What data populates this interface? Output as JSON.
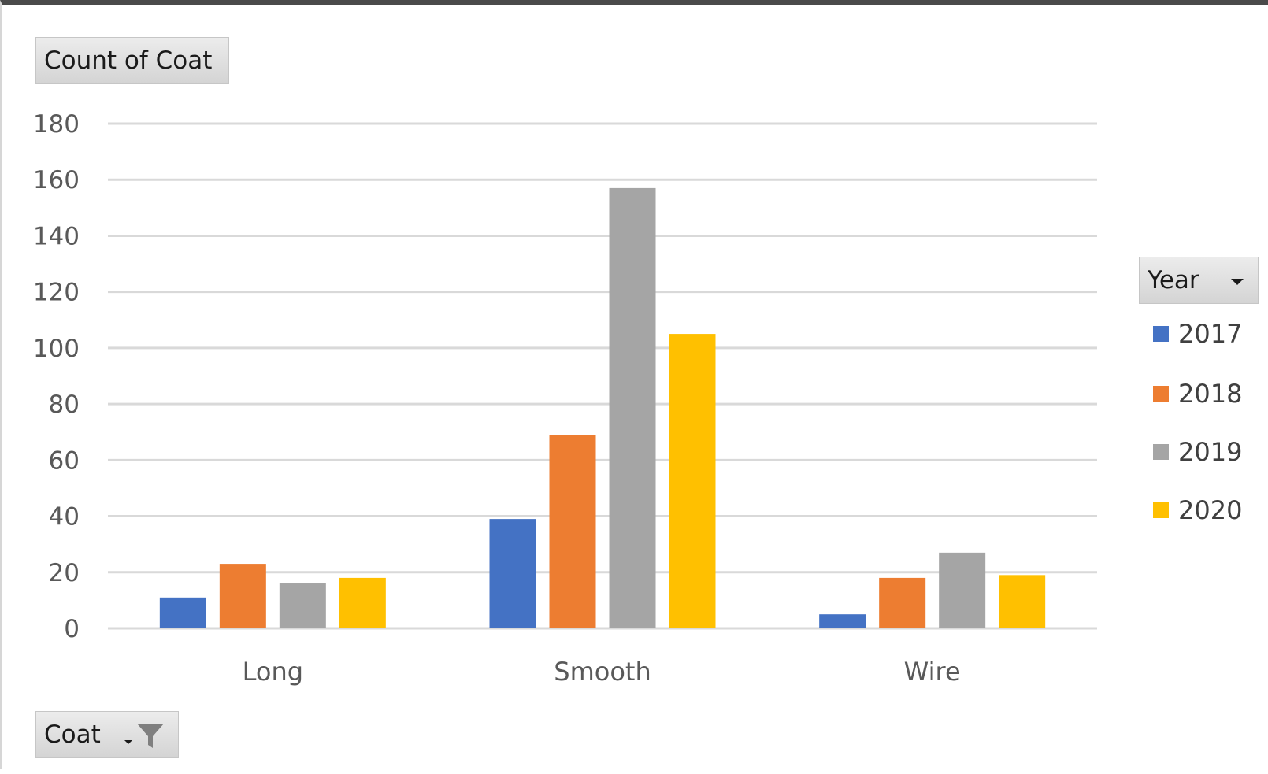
{
  "chart_data": {
    "type": "bar",
    "title": "",
    "xlabel": "",
    "ylabel": "",
    "categories": [
      "Long",
      "Smooth",
      "Wire"
    ],
    "series": [
      {
        "name": "2017",
        "values": [
          11,
          39,
          5
        ],
        "color": "#4472c4"
      },
      {
        "name": "2018",
        "values": [
          23,
          69,
          18
        ],
        "color": "#ed7d31"
      },
      {
        "name": "2019",
        "values": [
          16,
          157,
          27
        ],
        "color": "#a5a5a5"
      },
      {
        "name": "2020",
        "values": [
          18,
          105,
          19
        ],
        "color": "#ffc000"
      }
    ],
    "ylim": [
      0,
      180
    ],
    "yticks": [
      "0",
      "20",
      "40",
      "60",
      "80",
      "100",
      "120",
      "140",
      "160",
      "180"
    ],
    "grid": true,
    "legend_position": "right"
  },
  "pivot_fields": {
    "values_button": "Count of Coat",
    "axis_button": "Coat",
    "legend_button": "Year"
  },
  "legend": {
    "items": [
      "2017",
      "2018",
      "2019",
      "2020"
    ]
  },
  "colors": {
    "gridline": "#d9d9d9",
    "tick_label": "#595959"
  }
}
